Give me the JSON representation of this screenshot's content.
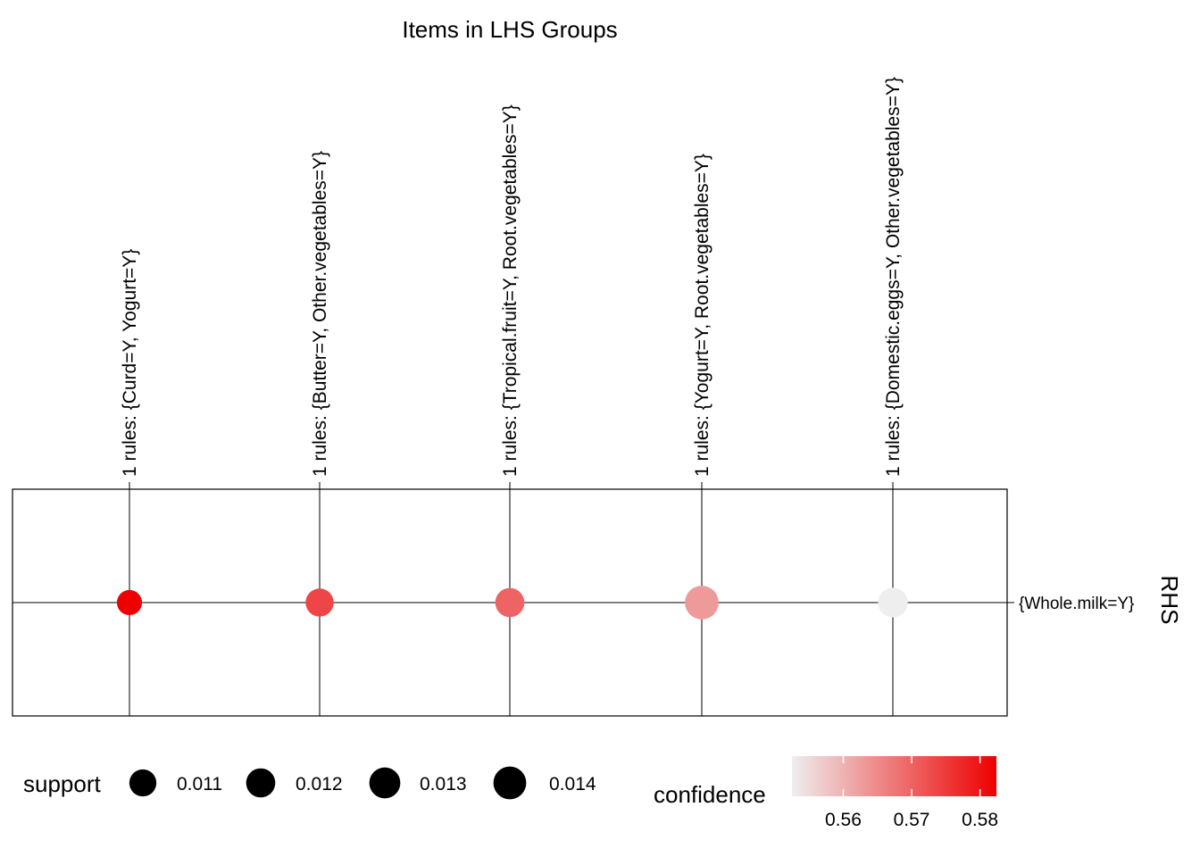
{
  "chart_data": {
    "type": "scatter",
    "title": "Items in LHS Groups",
    "x_categories": [
      "1 rules: {Curd=Y, Yogurt=Y}",
      "1 rules: {Butter=Y, Other.vegetables=Y}",
      "1 rules: {Tropical.fruit=Y, Root.vegetables=Y}",
      "1 rules: {Yogurt=Y, Root.vegetables=Y}",
      "1 rules: {Domestic.eggs=Y, Other.vegetables=Y}"
    ],
    "y_label": "RHS",
    "y_categories": [
      "{Whole.milk=Y}"
    ],
    "points": [
      {
        "lhs": "1 rules: {Curd=Y, Yogurt=Y}",
        "rhs": "{Whole.milk=Y}",
        "support": 0.0101,
        "confidence": 0.5824
      },
      {
        "lhs": "1 rules: {Butter=Y, Other.vegetables=Y}",
        "rhs": "{Whole.milk=Y}",
        "support": 0.0115,
        "confidence": 0.5736
      },
      {
        "lhs": "1 rules: {Tropical.fruit=Y, Root.vegetables=Y}",
        "rhs": "{Whole.milk=Y}",
        "support": 0.012,
        "confidence": 0.57
      },
      {
        "lhs": "1 rules: {Yogurt=Y, Root.vegetables=Y}",
        "rhs": "{Whole.milk=Y}",
        "support": 0.0145,
        "confidence": 0.563
      },
      {
        "lhs": "1 rules: {Domestic.eggs=Y, Other.vegetables=Y}",
        "rhs": "{Whole.milk=Y}",
        "support": 0.0123,
        "confidence": 0.5525
      }
    ],
    "legend": {
      "size_title": "support",
      "size_entries": [
        {
          "label": "0.011",
          "value": 0.011
        },
        {
          "label": "0.012",
          "value": 0.012
        },
        {
          "label": "0.013",
          "value": 0.013
        },
        {
          "label": "0.014",
          "value": 0.014
        }
      ],
      "color_title": "confidence",
      "color_range": [
        0.5525,
        0.5824
      ],
      "color_low": "#EEEEEE",
      "color_high": "#EE0000",
      "color_ticks": [
        {
          "label": "0.56",
          "value": 0.56
        },
        {
          "label": "0.57",
          "value": 0.57
        },
        {
          "label": "0.58",
          "value": 0.58
        }
      ],
      "placement": "bottom"
    },
    "grid": true
  }
}
